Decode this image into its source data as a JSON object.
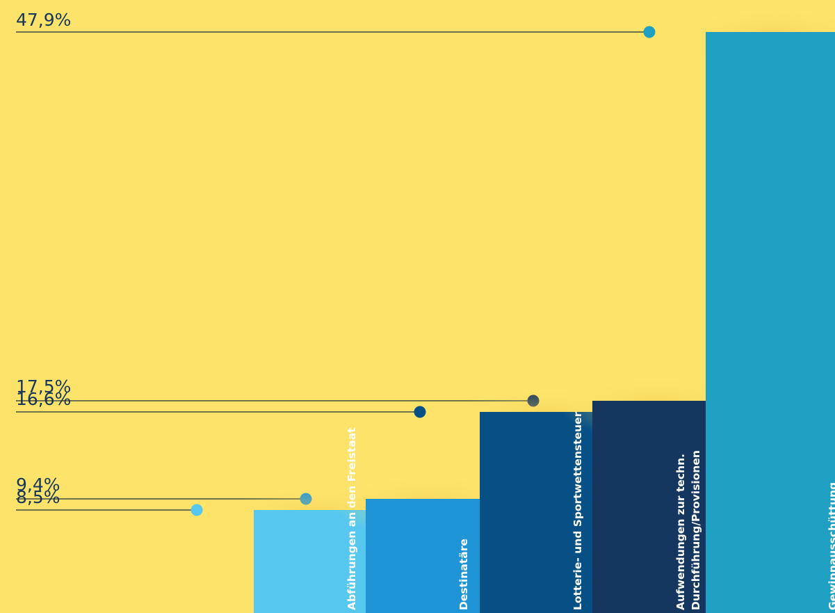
{
  "chart_data": {
    "type": "bar",
    "categories": [
      [
        "Abführungen an den Freistaat"
      ],
      [
        "Destinatäre"
      ],
      [
        "Lotterie- und Sportwettensteuer"
      ],
      [
        "Aufwendungen zur techn.",
        "Durchführung/Provisionen"
      ],
      [
        "Gewinnausschüttung"
      ]
    ],
    "values": [
      8.5,
      9.4,
      16.6,
      17.5,
      47.9
    ],
    "value_labels": [
      "8,5%",
      "9,4%",
      "16,6%",
      "17,5%",
      "47,9%"
    ],
    "unit": "%",
    "colors": [
      "#56c8f0",
      "#1f94d6",
      "#075086",
      "#15375f",
      "#1fa0c2"
    ],
    "side_colors": [
      "#4aa6c8",
      "#2283bb",
      "#0d4474",
      "#0f2a4a",
      "#1fa0c2"
    ],
    "grid": false,
    "legend": "none"
  }
}
